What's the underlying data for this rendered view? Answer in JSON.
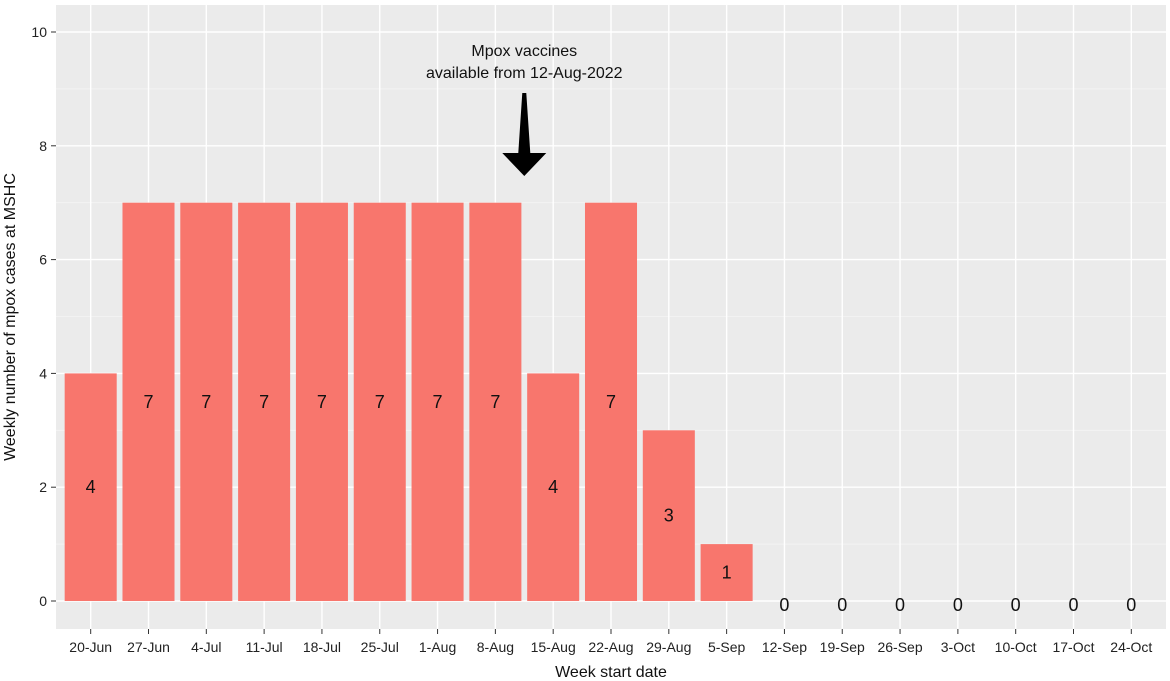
{
  "chart_data": {
    "type": "bar",
    "categories": [
      "20-Jun",
      "27-Jun",
      "4-Jul",
      "11-Jul",
      "18-Jul",
      "25-Jul",
      "1-Aug",
      "8-Aug",
      "15-Aug",
      "22-Aug",
      "29-Aug",
      "5-Sep",
      "12-Sep",
      "19-Sep",
      "26-Sep",
      "3-Oct",
      "10-Oct",
      "17-Oct",
      "24-Oct"
    ],
    "values": [
      4,
      7,
      7,
      7,
      7,
      7,
      7,
      7,
      4,
      7,
      3,
      1,
      0,
      0,
      0,
      0,
      0,
      0,
      0
    ],
    "xlabel": "Week start date",
    "ylabel": "Weekly number of mpox cases at MSHC",
    "ylim": [
      0,
      10.3
    ],
    "yticks": [
      0,
      2,
      4,
      6,
      8,
      10
    ],
    "bar_color": "#F8766D",
    "panel_color": "#EBEBEB",
    "grid": true,
    "annotation": {
      "lines": [
        "Mpox vaccines",
        "available from 12-Aug-2022"
      ],
      "x_between": [
        "8-Aug",
        "15-Aug"
      ],
      "arrow": "down"
    }
  }
}
